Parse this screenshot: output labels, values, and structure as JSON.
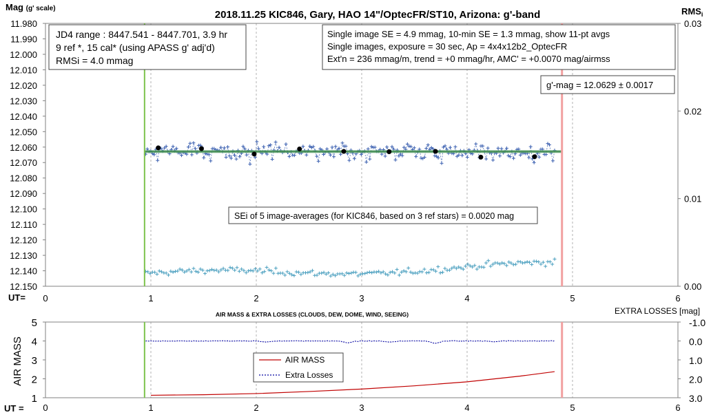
{
  "chart_data": [
    {
      "type": "scatter",
      "title": "2018.11.25 KIC846, Gary, HAO 14\"/OptecFR/ST10, Arizona: g'-band",
      "ylabel_left": "Mag",
      "ylabel_left_sub": "(g' scale)",
      "ylabel_right": "RMS",
      "ylabel_right_sub": "i",
      "xlabel": "UT=",
      "xlim": [
        0,
        6
      ],
      "ylim": [
        12.15,
        11.98
      ],
      "y2lim": [
        0,
        0.03
      ],
      "xticks": [
        "0",
        "1",
        "2",
        "3",
        "4",
        "5",
        "6"
      ],
      "yticks": [
        "11.980",
        "11.990",
        "12.000",
        "12.010",
        "12.020",
        "12.030",
        "12.040",
        "12.050",
        "12.060",
        "12.070",
        "12.080",
        "12.090",
        "12.100",
        "12.110",
        "12.120",
        "12.130",
        "12.140",
        "12.150"
      ],
      "y2ticks": [
        "0.03",
        "0.02",
        "0.01",
        "0.00"
      ],
      "annotations": {
        "box1": [
          "JD4 range : 8447.541 - 8447.701,  3.9  hr",
          "9 ref *, 15 cal* (using APASS g' adj'd)",
          "RMSi = 4.0 mmag"
        ],
        "box2": [
          "Single image SE = 4.9 mmag, 10-min SE = 1.3 mmag, show  11-pt avgs",
          "Single images, exposure = 30 sec, Ap = 4x4x12b2_OptecFR",
          "Ext'n = 236 mmag/m, trend =  +0 mmag/hr, AMC' = +0.0070 mag/airmss"
        ],
        "box3": "g'-mag = 12.0629 ± 0.0017",
        "box4": "SEi of 5 image-averages (for KIC846, based on 3 ref stars) = 0.0020 mag"
      },
      "vlines": {
        "start": 0.94,
        "end": 4.9,
        "dashed": [
          1,
          2,
          3,
          4,
          5
        ]
      },
      "fit_line": {
        "x": [
          0.94,
          4.9
        ],
        "y": 12.0629
      },
      "averages": {
        "x": [
          1.07,
          1.48,
          1.98,
          2.41,
          2.83,
          3.26,
          3.7,
          4.13,
          4.64
        ],
        "y": [
          12.0605,
          12.061,
          12.0645,
          12.0612,
          12.0628,
          12.063,
          12.0628,
          12.0665,
          12.0662
        ]
      },
      "singles": {
        "x_range": [
          0.95,
          4.83
        ],
        "count": 240,
        "mean": 12.0629,
        "scatter": 0.0049
      },
      "rms": {
        "x_range": [
          0.95,
          4.83
        ],
        "count": 180,
        "mean": 0.0015,
        "amplitude": 0.0017
      }
    },
    {
      "type": "line",
      "title": "AIR MASS & EXTRA LOSSES (CLOUDS, DEW, DOME, WIND, SEEING)",
      "ylabel_left": "AIR MASS",
      "ylabel_right": "EXTRA LOSSES [mag]",
      "xlabel": "UT =",
      "xlim": [
        0,
        6
      ],
      "ylim": [
        1,
        5
      ],
      "y2lim": [
        3.0,
        -1.0
      ],
      "xticks": [
        "0",
        "1",
        "2",
        "3",
        "4",
        "5",
        "6"
      ],
      "yticks": [
        "5",
        "4",
        "3",
        "2",
        "1"
      ],
      "y2ticks": [
        "-1.0",
        "0.0",
        "1.0",
        "2.0",
        "3.0"
      ],
      "vlines": {
        "start": 0.94,
        "end": 4.9,
        "dashed": [
          1,
          2,
          3,
          4,
          5
        ]
      },
      "series": [
        {
          "name": "AIR MASS",
          "color": "#c00000",
          "x": [
            1.0,
            1.5,
            2.0,
            2.5,
            3.0,
            3.5,
            4.0,
            4.5,
            4.83
          ],
          "y": [
            1.13,
            1.16,
            1.22,
            1.33,
            1.46,
            1.63,
            1.84,
            2.14,
            2.38
          ]
        },
        {
          "name": "Extra Losses",
          "color": "#0000a0",
          "x_range": [
            0.95,
            4.83
          ],
          "baseline": 0.0,
          "dips": [
            [
              2.1,
              0.06
            ],
            [
              2.87,
              0.09
            ],
            [
              3.27,
              0.06
            ],
            [
              3.7,
              0.12
            ],
            [
              4.25,
              0.04
            ]
          ]
        }
      ]
    }
  ]
}
